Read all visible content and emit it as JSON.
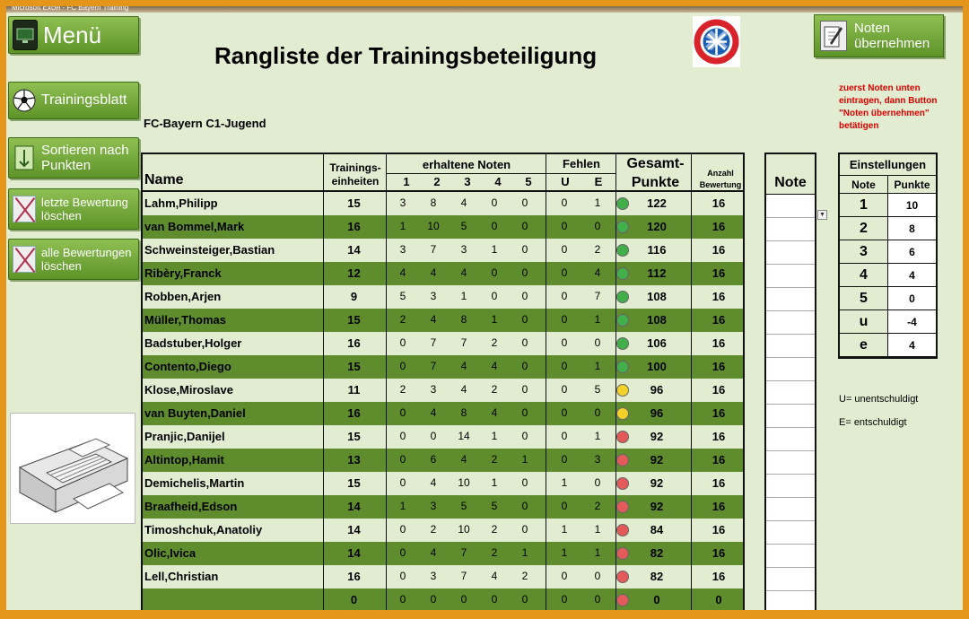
{
  "window": {
    "title_fragment": "Microsoft Excel - FC Bayern Training"
  },
  "sidebar": {
    "menu_label": "Menü",
    "training_label": "Trainingsblatt",
    "sort_label": "Sortieren nach Punkten",
    "delete_last_label": "letzte Bewertung löschen",
    "delete_all_label": "alle Bewertungen löschen"
  },
  "header": {
    "title": "Rangliste der Trainingsbeteiligung",
    "team": "FC-Bayern   C1-Jugend",
    "logo_text": "FC BAYERN MÜNCHEN",
    "noten_button": "Noten übernehmen",
    "hint": "zuerst Noten unten eintragen, dann Button \"Noten übernehmen\" betätigen"
  },
  "columns": {
    "name": "Name",
    "trainings": "Trainings-einheiten",
    "noten": "erhaltene Noten",
    "fehlen": "Fehlen",
    "gesamt": "Gesamt-Punkte",
    "anzahl": "Anzahl Bewertung",
    "grades": [
      "1",
      "2",
      "3",
      "4",
      "5"
    ],
    "absences": [
      "U",
      "E"
    ],
    "note": "Note"
  },
  "status_colors": {
    "green": "#41b04a",
    "yellow": "#f3d128",
    "red": "#e45a5a"
  },
  "players": [
    {
      "name": "Lahm,Philipp",
      "te": "15",
      "g": [
        "3",
        "8",
        "4",
        "0",
        "0"
      ],
      "a": [
        "0",
        "1"
      ],
      "status": "green",
      "punkte": "122",
      "anz": "16"
    },
    {
      "name": "van Bommel,Mark",
      "te": "16",
      "g": [
        "1",
        "10",
        "5",
        "0",
        "0"
      ],
      "a": [
        "0",
        "0"
      ],
      "status": "green",
      "punkte": "120",
      "anz": "16"
    },
    {
      "name": "Schweinsteiger,Bastian",
      "te": "14",
      "g": [
        "3",
        "7",
        "3",
        "1",
        "0"
      ],
      "a": [
        "0",
        "2"
      ],
      "status": "green",
      "punkte": "116",
      "anz": "16"
    },
    {
      "name": "Ribèry,Franck",
      "te": "12",
      "g": [
        "4",
        "4",
        "4",
        "0",
        "0"
      ],
      "a": [
        "0",
        "4"
      ],
      "status": "green",
      "punkte": "112",
      "anz": "16"
    },
    {
      "name": "Robben,Arjen",
      "te": "9",
      "g": [
        "5",
        "3",
        "1",
        "0",
        "0"
      ],
      "a": [
        "0",
        "7"
      ],
      "status": "green",
      "punkte": "108",
      "anz": "16"
    },
    {
      "name": "Müller,Thomas",
      "te": "15",
      "g": [
        "2",
        "4",
        "8",
        "1",
        "0"
      ],
      "a": [
        "0",
        "1"
      ],
      "status": "green",
      "punkte": "108",
      "anz": "16"
    },
    {
      "name": "Badstuber,Holger",
      "te": "16",
      "g": [
        "0",
        "7",
        "7",
        "2",
        "0"
      ],
      "a": [
        "0",
        "0"
      ],
      "status": "green",
      "punkte": "106",
      "anz": "16"
    },
    {
      "name": "Contento,Diego",
      "te": "15",
      "g": [
        "0",
        "7",
        "4",
        "4",
        "0"
      ],
      "a": [
        "0",
        "1"
      ],
      "status": "green",
      "punkte": "100",
      "anz": "16"
    },
    {
      "name": "Klose,Miroslave",
      "te": "11",
      "g": [
        "2",
        "3",
        "4",
        "2",
        "0"
      ],
      "a": [
        "0",
        "5"
      ],
      "status": "yellow",
      "punkte": "96",
      "anz": "16"
    },
    {
      "name": "van Buyten,Daniel",
      "te": "16",
      "g": [
        "0",
        "4",
        "8",
        "4",
        "0"
      ],
      "a": [
        "0",
        "0"
      ],
      "status": "yellow",
      "punkte": "96",
      "anz": "16"
    },
    {
      "name": "Pranjic,Danijel",
      "te": "15",
      "g": [
        "0",
        "0",
        "14",
        "1",
        "0"
      ],
      "a": [
        "0",
        "1"
      ],
      "status": "red",
      "punkte": "92",
      "anz": "16"
    },
    {
      "name": "Altintop,Hamit",
      "te": "13",
      "g": [
        "0",
        "6",
        "4",
        "2",
        "1"
      ],
      "a": [
        "0",
        "3"
      ],
      "status": "red",
      "punkte": "92",
      "anz": "16"
    },
    {
      "name": "Demichelis,Martin",
      "te": "15",
      "g": [
        "0",
        "4",
        "10",
        "1",
        "0"
      ],
      "a": [
        "1",
        "0"
      ],
      "status": "red",
      "punkte": "92",
      "anz": "16"
    },
    {
      "name": "Braafheid,Edson",
      "te": "14",
      "g": [
        "1",
        "3",
        "5",
        "5",
        "0"
      ],
      "a": [
        "0",
        "2"
      ],
      "status": "red",
      "punkte": "92",
      "anz": "16"
    },
    {
      "name": "Timoshchuk,Anatoliy",
      "te": "14",
      "g": [
        "0",
        "2",
        "10",
        "2",
        "0"
      ],
      "a": [
        "1",
        "1"
      ],
      "status": "red",
      "punkte": "84",
      "anz": "16"
    },
    {
      "name": "Olic,Ivica",
      "te": "14",
      "g": [
        "0",
        "4",
        "7",
        "2",
        "1"
      ],
      "a": [
        "1",
        "1"
      ],
      "status": "red",
      "punkte": "82",
      "anz": "16"
    },
    {
      "name": "Lell,Christian",
      "te": "16",
      "g": [
        "0",
        "3",
        "7",
        "4",
        "2"
      ],
      "a": [
        "0",
        "0"
      ],
      "status": "red",
      "punkte": "82",
      "anz": "16"
    },
    {
      "name": "",
      "te": "0",
      "g": [
        "0",
        "0",
        "0",
        "0",
        "0"
      ],
      "a": [
        "0",
        "0"
      ],
      "status": "red",
      "punkte": "0",
      "anz": "0"
    }
  ],
  "settings": {
    "title": "Einstellungen",
    "col_note": "Note",
    "col_punkte": "Punkte",
    "rows": [
      {
        "note": "1",
        "punkte": "10"
      },
      {
        "note": "2",
        "punkte": "8"
      },
      {
        "note": "3",
        "punkte": "6"
      },
      {
        "note": "4",
        "punkte": "4"
      },
      {
        "note": "5",
        "punkte": "0"
      },
      {
        "note": "u",
        "punkte": "-4"
      },
      {
        "note": "e",
        "punkte": "4"
      }
    ]
  },
  "legend": {
    "u": "U= unentschuldigt",
    "e": "E= entschuldigt"
  }
}
